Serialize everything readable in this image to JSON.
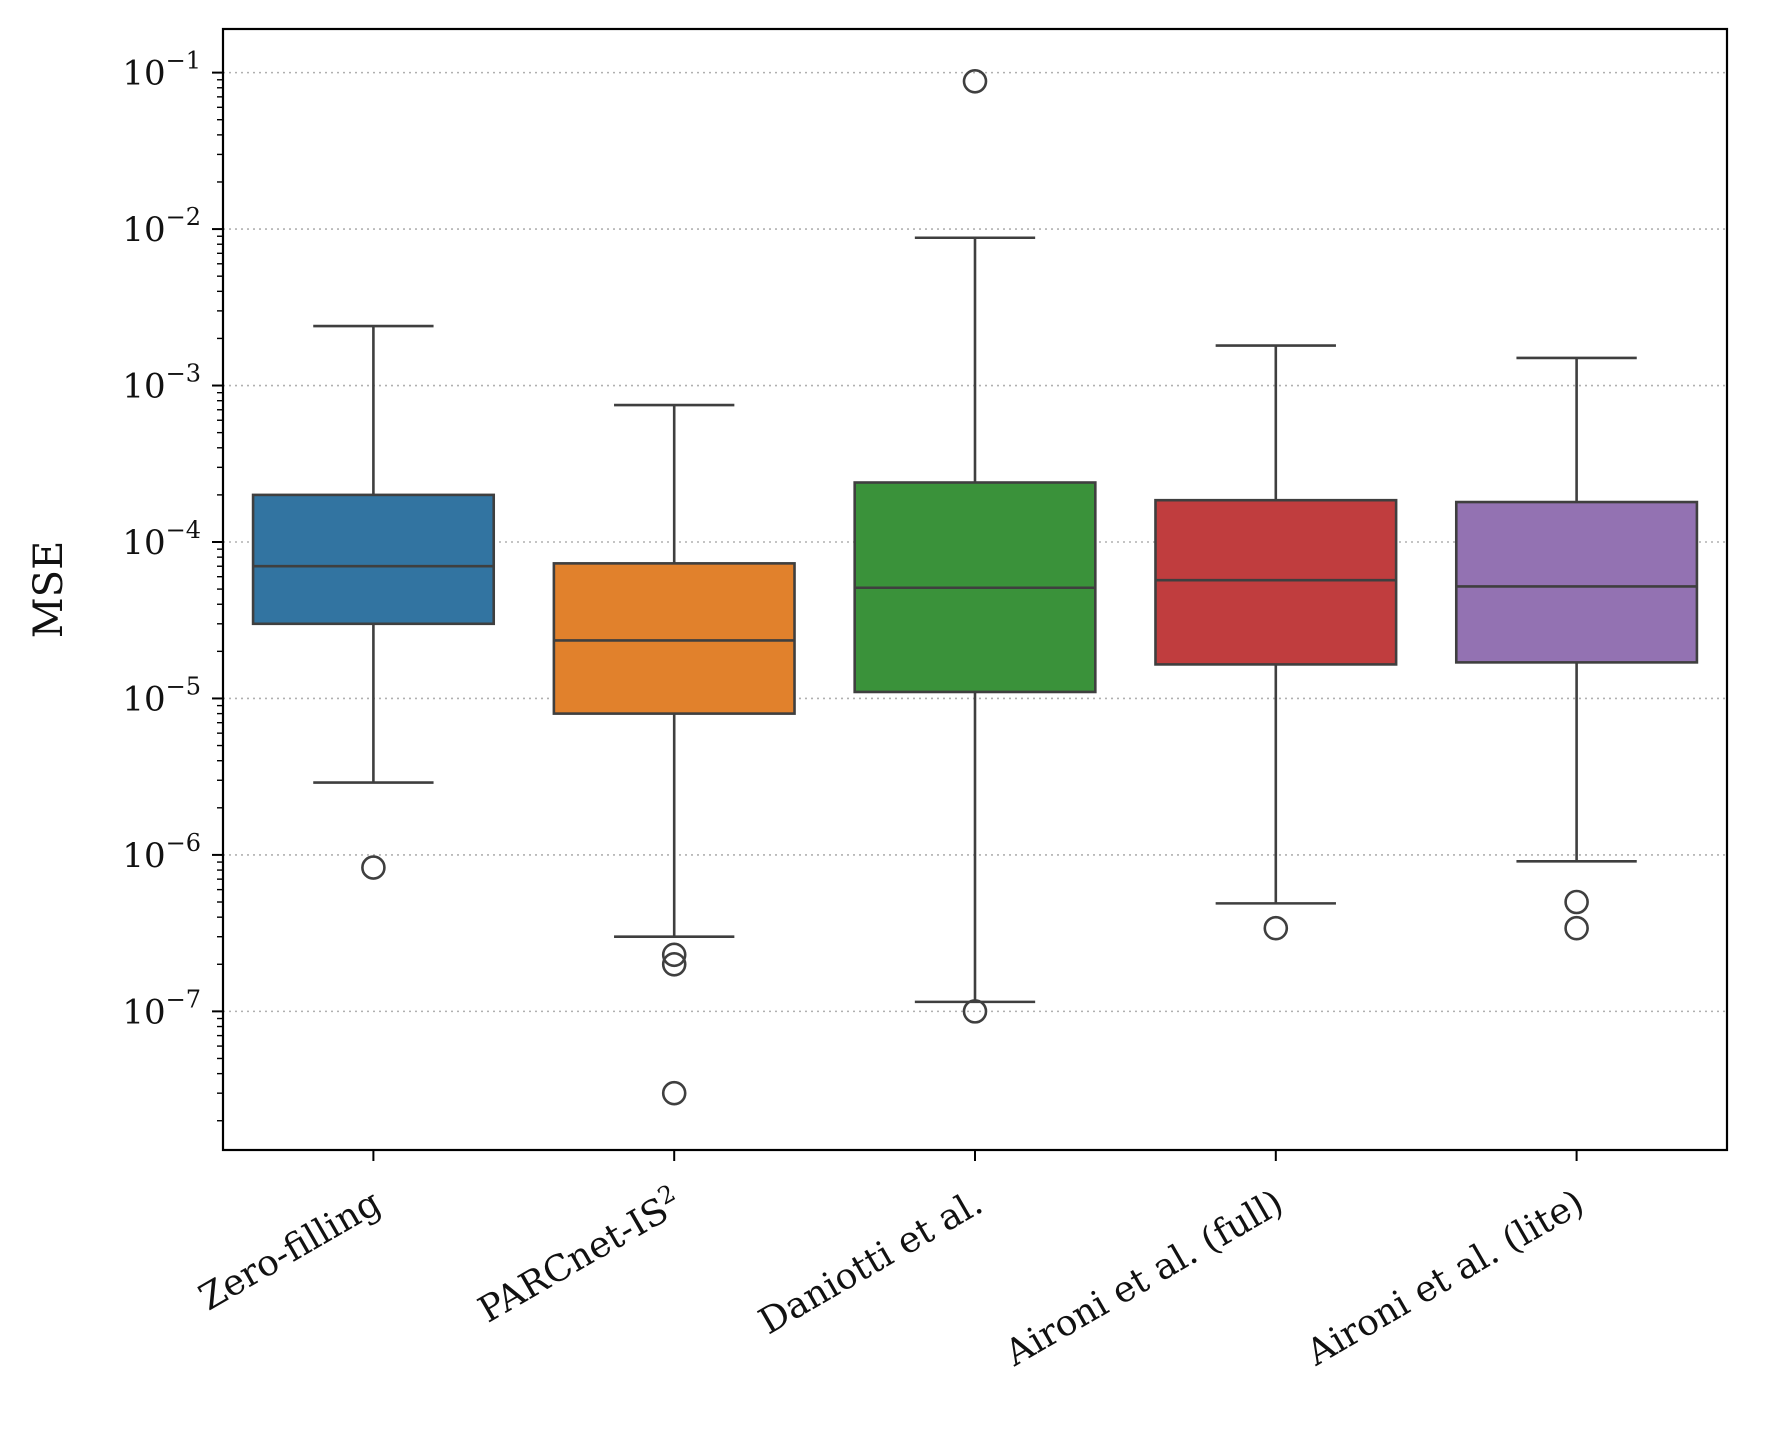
{
  "chart_data": {
    "type": "box",
    "title": "",
    "xlabel": "",
    "ylabel": "MSE",
    "yscale": "log",
    "ylim": [
      1.3e-08,
      0.19
    ],
    "grid": "horizontal dotted at major ticks",
    "y_ticks": [
      {
        "value": 1e-07,
        "exp": "−7"
      },
      {
        "value": 1e-06,
        "exp": "−6"
      },
      {
        "value": 1e-05,
        "exp": "−5"
      },
      {
        "value": 0.0001,
        "exp": "−4"
      },
      {
        "value": 0.001,
        "exp": "−3"
      },
      {
        "value": 0.01,
        "exp": "−2"
      },
      {
        "value": 0.1,
        "exp": "−1"
      }
    ],
    "y_tick_base": "10",
    "categories": [
      "Zero-filling",
      "PARCnet-IS",
      "Daniotti et al.",
      "Aironi et al. (full)",
      "Aironi et al. (lite)"
    ],
    "category_superscripts": [
      "",
      "2",
      "",
      "",
      ""
    ],
    "series": [
      {
        "category": "Zero-filling",
        "color": "#3274a1",
        "whisker_low": 2.9e-06,
        "q1": 3e-05,
        "median": 7e-05,
        "q3": 0.0002,
        "whisker_high": 0.0024,
        "outliers": [
          8.3e-07
        ]
      },
      {
        "category": "PARCnet-IS²",
        "color": "#e1812c",
        "whisker_low": 3e-07,
        "q1": 8e-06,
        "median": 2.35e-05,
        "q3": 7.3e-05,
        "whisker_high": 0.00075,
        "outliers": [
          2.3e-07,
          2e-07,
          3e-08
        ]
      },
      {
        "category": "Daniotti et al.",
        "color": "#3a923a",
        "whisker_low": 1.15e-07,
        "q1": 1.1e-05,
        "median": 5.1e-05,
        "q3": 0.00024,
        "whisker_high": 0.0088,
        "outliers": [
          1e-07,
          0.088
        ]
      },
      {
        "category": "Aironi et al. (full)",
        "color": "#c03d3e",
        "whisker_low": 4.9e-07,
        "q1": 1.65e-05,
        "median": 5.7e-05,
        "q3": 0.000185,
        "whisker_high": 0.0018,
        "outliers": [
          3.4e-07
        ]
      },
      {
        "category": "Aironi et al. (lite)",
        "color": "#9372b2",
        "whisker_low": 9.1e-07,
        "q1": 1.7e-05,
        "median": 5.2e-05,
        "q3": 0.00018,
        "whisker_high": 0.0015,
        "outliers": [
          5e-07,
          3.4e-07
        ]
      }
    ],
    "line_color": "#3f3f3f",
    "grid_color": "#b0b0b0"
  }
}
